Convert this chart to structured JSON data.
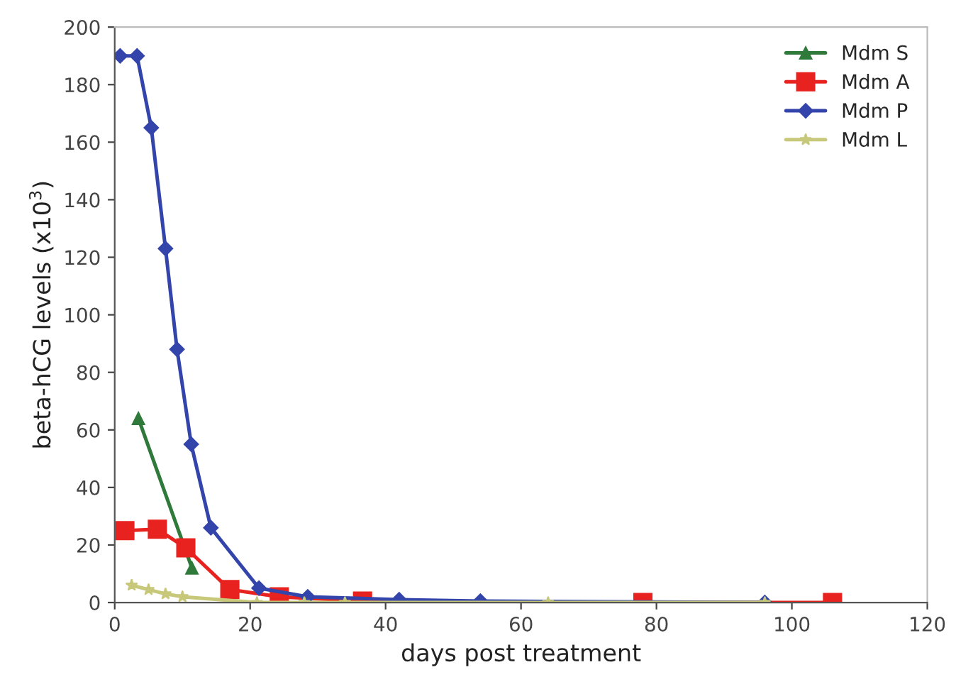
{
  "chart_data": {
    "type": "line",
    "xlabel": "days post treatment",
    "ylabel": "beta-hCG levels (x10$^{3}$)",
    "xlim": [
      0,
      120
    ],
    "xticks": [
      0,
      20,
      40,
      60,
      80,
      100,
      120
    ],
    "ylim": [
      0,
      200
    ],
    "yticks": [
      0,
      20,
      40,
      60,
      80,
      100,
      120,
      140,
      160,
      180,
      200
    ],
    "grid": false,
    "legend": "top right",
    "series": [
      {
        "name": "Mdm S",
        "color": "#2f7a3a",
        "marker": "triangle",
        "x": [
          3.5,
          11.4
        ],
        "values": [
          64,
          12
        ]
      },
      {
        "name": "Mdm A",
        "color": "#e8231f",
        "marker": "square",
        "x": [
          1.5,
          6.3,
          10.5,
          17,
          24.3,
          36.6,
          78,
          106
        ],
        "values": [
          25,
          25.5,
          19,
          4.5,
          2,
          0.5,
          0,
          0
        ]
      },
      {
        "name": "Mdm P",
        "color": "#3344aa",
        "marker": "diamond",
        "x": [
          0.8,
          3.3,
          5.4,
          7.5,
          9.2,
          11.3,
          14.2,
          21.3,
          28.5,
          42,
          54,
          96
        ],
        "values": [
          190,
          190,
          165,
          123,
          88,
          55,
          26,
          5,
          2,
          1,
          0.5,
          0
        ]
      },
      {
        "name": "Mdm L",
        "color": "#c8c87a",
        "marker": "star",
        "x": [
          2.5,
          5,
          7.5,
          10,
          21,
          28,
          34,
          64,
          96
        ],
        "values": [
          6,
          4.5,
          3,
          2,
          0,
          0,
          0,
          0,
          0
        ]
      }
    ]
  }
}
